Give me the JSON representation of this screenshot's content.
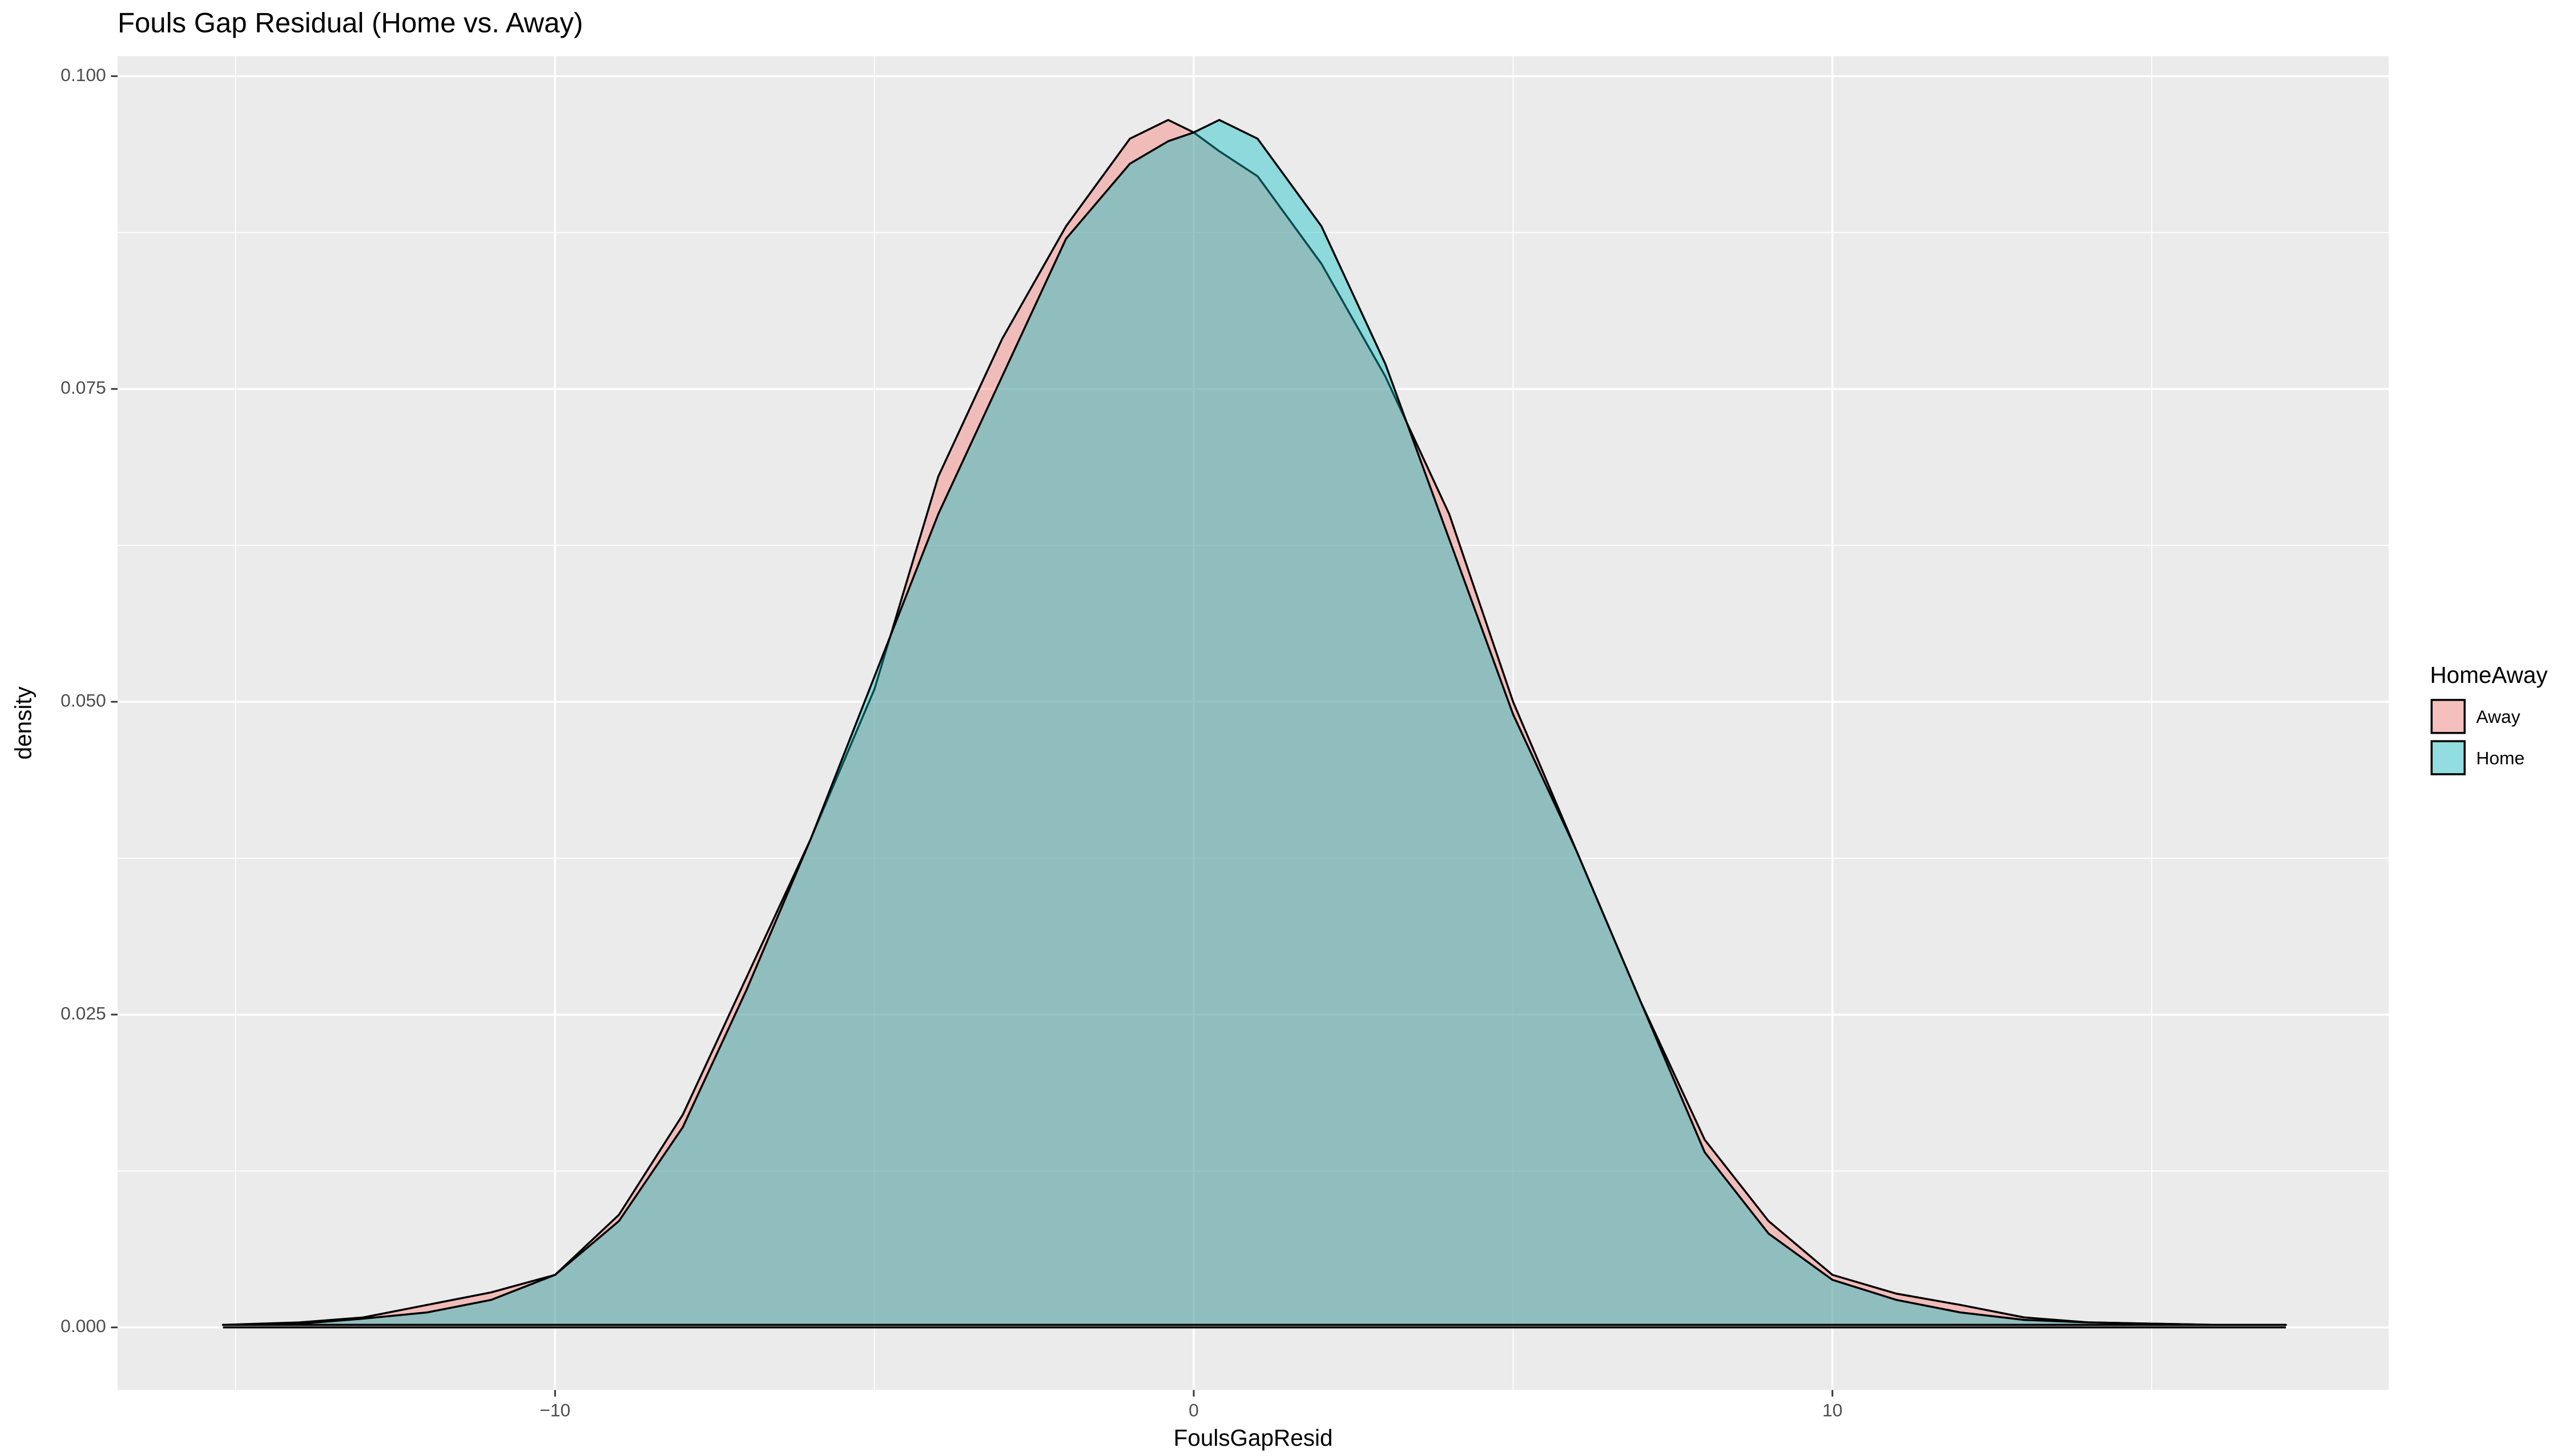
{
  "chart_data": {
    "type": "density",
    "title": "Fouls Gap Residual (Home vs. Away)",
    "x_label": "FoulsGapResid",
    "y_label": "density",
    "legend_title": "HomeAway",
    "legend_position": "right",
    "grid": true,
    "x": [
      -15.2,
      -14,
      -13,
      -12,
      -11,
      -10,
      -9,
      -8,
      -7,
      -6,
      -5,
      -4,
      -3,
      -2,
      -1,
      -0.4,
      0,
      0.4,
      1,
      2,
      3,
      4,
      5,
      6,
      7,
      8,
      9,
      10,
      11,
      12,
      13,
      14,
      15,
      16,
      17.1
    ],
    "series": [
      {
        "name": "Away",
        "color": "#F8766D",
        "values": [
          0.0002,
          0.0004,
          0.0008,
          0.0018,
          0.0028,
          0.0042,
          0.009,
          0.017,
          0.028,
          0.039,
          0.051,
          0.068,
          0.079,
          0.088,
          0.095,
          0.0965,
          0.0955,
          0.094,
          0.092,
          0.085,
          0.076,
          0.065,
          0.05,
          0.038,
          0.026,
          0.015,
          0.0085,
          0.0042,
          0.0027,
          0.0018,
          0.0008,
          0.0004,
          0.0003,
          0.0002,
          0.0002
        ]
      },
      {
        "name": "Home",
        "color": "#00BFC4",
        "values": [
          0.0002,
          0.0003,
          0.0007,
          0.0012,
          0.0022,
          0.0042,
          0.0085,
          0.016,
          0.027,
          0.039,
          0.052,
          0.065,
          0.076,
          0.087,
          0.093,
          0.0948,
          0.0955,
          0.0965,
          0.095,
          0.088,
          0.077,
          0.063,
          0.049,
          0.038,
          0.026,
          0.014,
          0.0075,
          0.0038,
          0.0022,
          0.0012,
          0.0006,
          0.0004,
          0.0003,
          0.0002,
          0.0002
        ]
      }
    ],
    "xlim": [
      -16.85,
      18.71
    ],
    "ylim": [
      -0.005,
      0.1016
    ],
    "xticks": [
      {
        "value": -10,
        "label": "−10"
      },
      0,
      10
    ],
    "yticks": [
      {
        "value": 0,
        "label": "0.000"
      },
      {
        "value": 0.025,
        "label": "0.025"
      },
      {
        "value": 0.05,
        "label": "0.050"
      },
      {
        "value": 0.075,
        "label": "0.075"
      },
      {
        "value": 0.1,
        "label": "0.100"
      }
    ],
    "xminor": [
      -15,
      -5,
      5,
      15
    ],
    "yminor": [
      0.0125,
      0.0375,
      0.0625,
      0.0875
    ]
  }
}
